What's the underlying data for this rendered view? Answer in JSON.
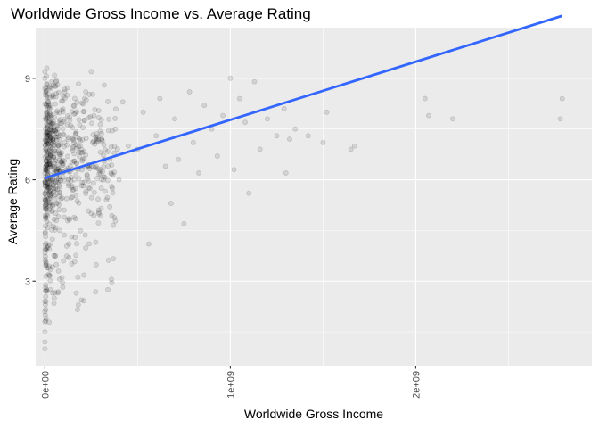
{
  "chart_data": {
    "type": "scatter",
    "title": "Worldwide Gross Income vs. Average Rating",
    "xlabel": "Worldwide Gross Income",
    "ylabel": "Average Rating",
    "xlim": [
      -50000000,
      2950000000
    ],
    "ylim": [
      0.5,
      10.5
    ],
    "x_ticks": [
      0,
      1000000000,
      2000000000
    ],
    "x_tick_labels": [
      "0e+00",
      "1e+09",
      "2e+09"
    ],
    "y_ticks": [
      3,
      6,
      9
    ],
    "y_tick_labels": [
      "3",
      "6",
      "9"
    ],
    "grid": true,
    "legend": "none",
    "colors": {
      "panel": "#ebebeb",
      "grid": "#ffffff",
      "points": "#000000",
      "trend": "#3366ff"
    },
    "point_alpha": 0.1,
    "dense_cluster": [
      {
        "income": 0,
        "rating": 5.6
      },
      {
        "income": 2000000,
        "rating": 6.2
      },
      {
        "income": 5000000,
        "rating": 6.5
      },
      {
        "income": 1000000,
        "rating": 7.0
      },
      {
        "income": 8000000,
        "rating": 5.9
      },
      {
        "income": 3000000,
        "rating": 7.4
      },
      {
        "income": 12000000,
        "rating": 6.8
      },
      {
        "income": 500000,
        "rating": 4.8
      },
      {
        "income": 20000000,
        "rating": 6.4
      },
      {
        "income": 6000000,
        "rating": 7.8
      },
      {
        "income": 15000000,
        "rating": 7.1
      },
      {
        "income": 1500000,
        "rating": 5.2
      },
      {
        "income": 30000000,
        "rating": 6.9
      },
      {
        "income": 4000000,
        "rating": 3.8
      },
      {
        "income": 25000000,
        "rating": 7.6
      },
      {
        "income": 9000000,
        "rating": 8.1
      },
      {
        "income": 2500000,
        "rating": 2.9
      },
      {
        "income": 40000000,
        "rating": 6.2
      }
    ],
    "points": [
      {
        "income": 0,
        "rating": 1.0
      },
      {
        "income": 0,
        "rating": 1.2
      },
      {
        "income": 0,
        "rating": 1.5
      },
      {
        "income": 0,
        "rating": 1.8
      },
      {
        "income": 0,
        "rating": 2.1
      },
      {
        "income": 0,
        "rating": 2.4
      },
      {
        "income": 0,
        "rating": 8.7
      },
      {
        "income": 0,
        "rating": 9.0
      },
      {
        "income": 0,
        "rating": 9.2
      },
      {
        "income": 10000000,
        "rating": 9.3
      },
      {
        "income": 5000000,
        "rating": 2.7
      },
      {
        "income": 20000000,
        "rating": 3.2
      },
      {
        "income": 50000000,
        "rating": 2.5
      },
      {
        "income": 60000000,
        "rating": 8.9
      },
      {
        "income": 80000000,
        "rating": 4.5
      },
      {
        "income": 100000000,
        "rating": 3.6
      },
      {
        "income": 120000000,
        "rating": 8.5
      },
      {
        "income": 150000000,
        "rating": 7.2
      },
      {
        "income": 180000000,
        "rating": 2.3
      },
      {
        "income": 200000000,
        "rating": 6.8
      },
      {
        "income": 220000000,
        "rating": 8.6
      },
      {
        "income": 250000000,
        "rating": 5.0
      },
      {
        "income": 250000000,
        "rating": 9.2
      },
      {
        "income": 300000000,
        "rating": 6.3
      },
      {
        "income": 320000000,
        "rating": 8.8
      },
      {
        "income": 350000000,
        "rating": 5.2
      },
      {
        "income": 380000000,
        "rating": 7.5
      },
      {
        "income": 400000000,
        "rating": 6.0
      },
      {
        "income": 420000000,
        "rating": 8.3
      },
      {
        "income": 450000000,
        "rating": 7.0
      },
      {
        "income": 500000000,
        "rating": 6.9
      },
      {
        "income": 530000000,
        "rating": 8.0
      },
      {
        "income": 560000000,
        "rating": 4.1
      },
      {
        "income": 600000000,
        "rating": 7.3
      },
      {
        "income": 620000000,
        "rating": 8.4
      },
      {
        "income": 650000000,
        "rating": 6.4
      },
      {
        "income": 680000000,
        "rating": 5.3
      },
      {
        "income": 700000000,
        "rating": 7.8
      },
      {
        "income": 720000000,
        "rating": 6.6
      },
      {
        "income": 750000000,
        "rating": 4.7
      },
      {
        "income": 780000000,
        "rating": 8.6
      },
      {
        "income": 800000000,
        "rating": 7.1
      },
      {
        "income": 830000000,
        "rating": 6.2
      },
      {
        "income": 860000000,
        "rating": 8.2
      },
      {
        "income": 900000000,
        "rating": 7.5
      },
      {
        "income": 930000000,
        "rating": 6.7
      },
      {
        "income": 960000000,
        "rating": 7.9
      },
      {
        "income": 1000000000,
        "rating": 9.0
      },
      {
        "income": 1020000000,
        "rating": 6.3
      },
      {
        "income": 1050000000,
        "rating": 8.4
      },
      {
        "income": 1080000000,
        "rating": 7.7
      },
      {
        "income": 1100000000,
        "rating": 5.6
      },
      {
        "income": 1130000000,
        "rating": 8.9
      },
      {
        "income": 1160000000,
        "rating": 6.9
      },
      {
        "income": 1200000000,
        "rating": 7.8
      },
      {
        "income": 1250000000,
        "rating": 7.3
      },
      {
        "income": 1290000000,
        "rating": 8.1
      },
      {
        "income": 1300000000,
        "rating": 6.2
      },
      {
        "income": 1320000000,
        "rating": 7.2
      },
      {
        "income": 1350000000,
        "rating": 7.5
      },
      {
        "income": 1420000000,
        "rating": 7.3
      },
      {
        "income": 1500000000,
        "rating": 7.1
      },
      {
        "income": 1520000000,
        "rating": 8.0
      },
      {
        "income": 1650000000,
        "rating": 6.9
      },
      {
        "income": 1670000000,
        "rating": 7.0
      },
      {
        "income": 2050000000,
        "rating": 8.4
      },
      {
        "income": 2070000000,
        "rating": 7.9
      },
      {
        "income": 2200000000,
        "rating": 7.8
      },
      {
        "income": 2780000000,
        "rating": 7.8
      },
      {
        "income": 2790000000,
        "rating": 8.4
      }
    ],
    "trend_line": {
      "method": "linear",
      "x": [
        0,
        2790000000
      ],
      "y": [
        6.05,
        10.85
      ]
    }
  }
}
